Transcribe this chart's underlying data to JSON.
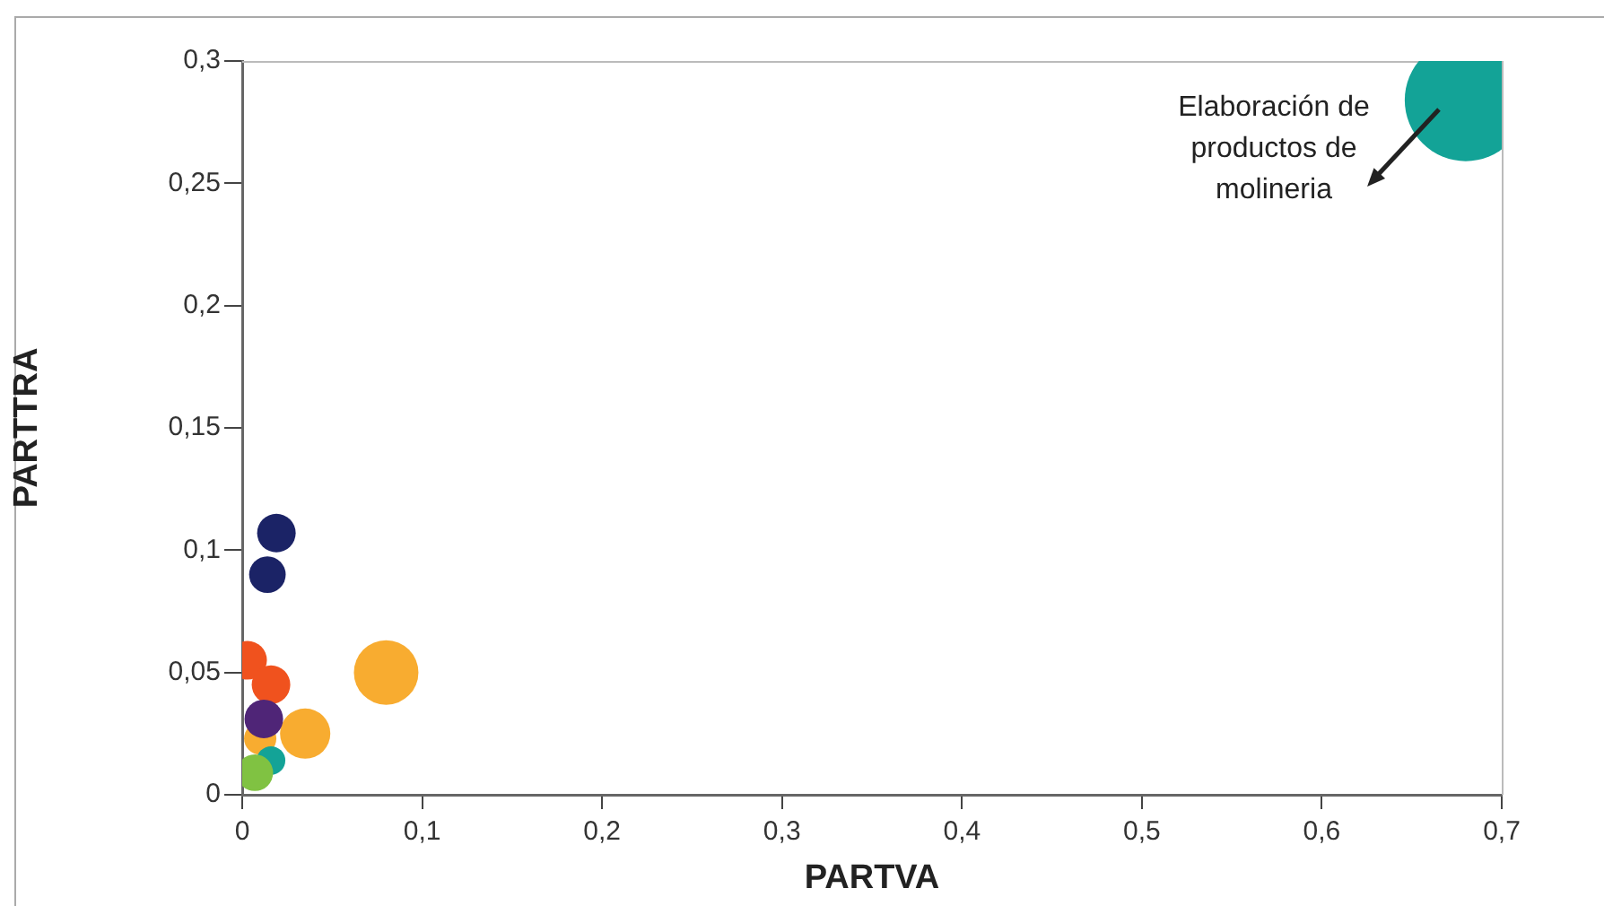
{
  "chart_data": {
    "type": "bubble",
    "xlabel": "PARTVA",
    "ylabel": "PARTTRA",
    "xlim": [
      0,
      0.7
    ],
    "ylim": [
      0,
      0.3
    ],
    "xticks": [
      0,
      {
        "value": 0.1,
        "label": "0,1"
      },
      {
        "value": 0.2,
        "label": "0,2"
      },
      {
        "value": 0.3,
        "label": "0,3"
      },
      {
        "value": 0.4,
        "label": "0,4"
      },
      {
        "value": 0.5,
        "label": "0,5"
      },
      {
        "value": 0.6,
        "label": "0,6"
      },
      {
        "value": 0.7,
        "label": "0,7"
      }
    ],
    "yticks": [
      0,
      {
        "value": 0.05,
        "label": "0,05"
      },
      {
        "value": 0.1,
        "label": "0,1"
      },
      {
        "value": 0.15,
        "label": "0,15"
      },
      {
        "value": 0.2,
        "label": "0,2"
      },
      {
        "value": 0.25,
        "label": "0,25"
      },
      {
        "value": 0.3,
        "label": "0,3"
      }
    ],
    "grid": false,
    "legend": false,
    "series": [
      {
        "x": [
          0.68,
          0.019,
          0.014,
          0.003,
          0.016,
          0.08,
          0.035,
          0.01,
          0.012,
          0.016,
          0.007
        ],
        "values": [
          0.284,
          0.107,
          0.09,
          0.055,
          0.045,
          0.05,
          0.025,
          0.023,
          0.031,
          0.014,
          0.009
        ],
        "sizes": [
          1,
          0.1,
          0.09,
          0.1,
          0.1,
          0.28,
          0.17,
          0.07,
          0.1,
          0.055,
          0.09
        ],
        "colors": [
          "#13a397",
          "#1b2366",
          "#1b2366",
          "#f0521e",
          "#f0521e",
          "#f8ac30",
          "#f8ac30",
          "#f8ac30",
          "#4f2577",
          "#13a397",
          "#80c242"
        ]
      }
    ],
    "annotations": [
      "Elaboración de\nproductos de\nmolineria"
    ]
  }
}
